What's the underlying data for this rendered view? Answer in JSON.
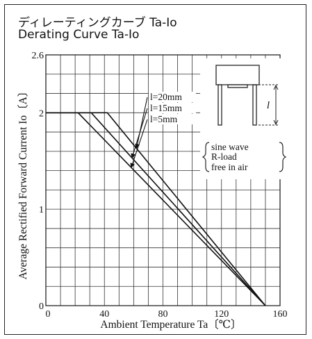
{
  "chart_data": {
    "type": "line",
    "title": "ディレーティングカーブ Ta-Io",
    "subtitle": "Derating Curve Ta-Io",
    "xlabel": "Ambient Temperature Ta〔℃〕",
    "ylabel": "Average Rectified Forward Current Io〔A〕",
    "xlim": [
      0,
      160
    ],
    "ylim": [
      0,
      2.6
    ],
    "xticks": [
      "0",
      "40",
      "80",
      "120",
      "160"
    ],
    "yticks": [
      "0",
      "1",
      "2",
      "2.6"
    ],
    "grid": true,
    "series": [
      {
        "name": "l=20mm",
        "x": [
          0,
          42,
          150
        ],
        "y": [
          2,
          2,
          0
        ]
      },
      {
        "name": "l=15mm",
        "x": [
          0,
          31,
          150
        ],
        "y": [
          2,
          2,
          0
        ]
      },
      {
        "name": "l=5mm",
        "x": [
          0,
          22,
          150
        ],
        "y": [
          2,
          2,
          0
        ]
      }
    ],
    "annotations": [
      "sine wave",
      "R-load",
      "free in air"
    ],
    "diagram_label": "l"
  }
}
